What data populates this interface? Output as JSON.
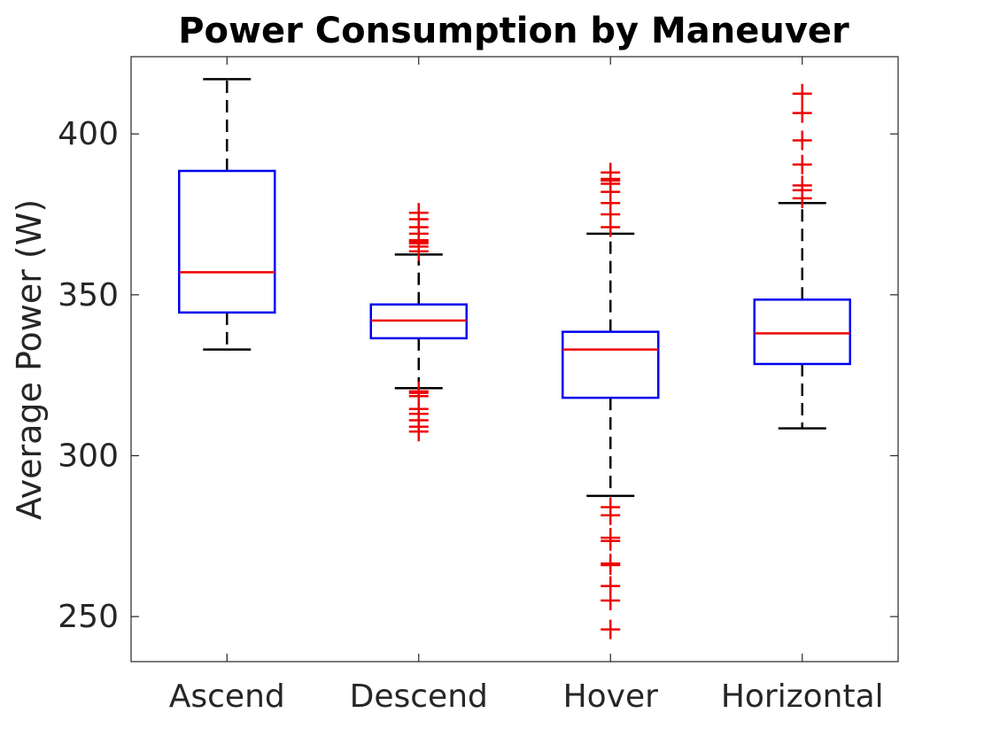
{
  "chart_data": {
    "type": "boxplot",
    "title": "Power Consumption by Maneuver",
    "xlabel": "",
    "ylabel": "Average Power (W)",
    "ylim": [
      236,
      424
    ],
    "yticks": [
      250,
      300,
      350,
      400
    ],
    "grid": false,
    "categories": [
      "Ascend",
      "Descend",
      "Hover",
      "Horizontal"
    ],
    "boxes": [
      {
        "category": "Ascend",
        "whisker_low": 333,
        "q1": 344.5,
        "median": 357,
        "q3": 388.5,
        "whisker_high": 417,
        "outliers": []
      },
      {
        "category": "Descend",
        "whisker_low": 321,
        "q1": 336.5,
        "median": 342,
        "q3": 347,
        "whisker_high": 362.5,
        "outliers": [
          307.5,
          309,
          311,
          313,
          314.5,
          318.5,
          319.5,
          320,
          363.5,
          365,
          366,
          366.5,
          367,
          369,
          371,
          373.5,
          375.5
        ]
      },
      {
        "category": "Hover",
        "whisker_low": 287.5,
        "q1": 318,
        "median": 333,
        "q3": 338.5,
        "whisker_high": 369,
        "outliers": [
          246,
          255,
          259.5,
          266,
          266.5,
          273.5,
          274.5,
          281.5,
          284,
          371,
          375,
          378.5,
          382,
          384.5,
          385.5,
          386,
          388
        ]
      },
      {
        "category": "Horizontal",
        "whisker_low": 308.5,
        "q1": 328.5,
        "median": 338,
        "q3": 348.5,
        "whisker_high": 378.5,
        "outliers": [
          380,
          382.5,
          384,
          390.5,
          398,
          406.5,
          412.5
        ]
      }
    ],
    "colors": {
      "box": "#0000ee",
      "median": "#ee0000",
      "whisker": "#000000",
      "outlier": "#ee0000",
      "axes": "#262626"
    }
  }
}
